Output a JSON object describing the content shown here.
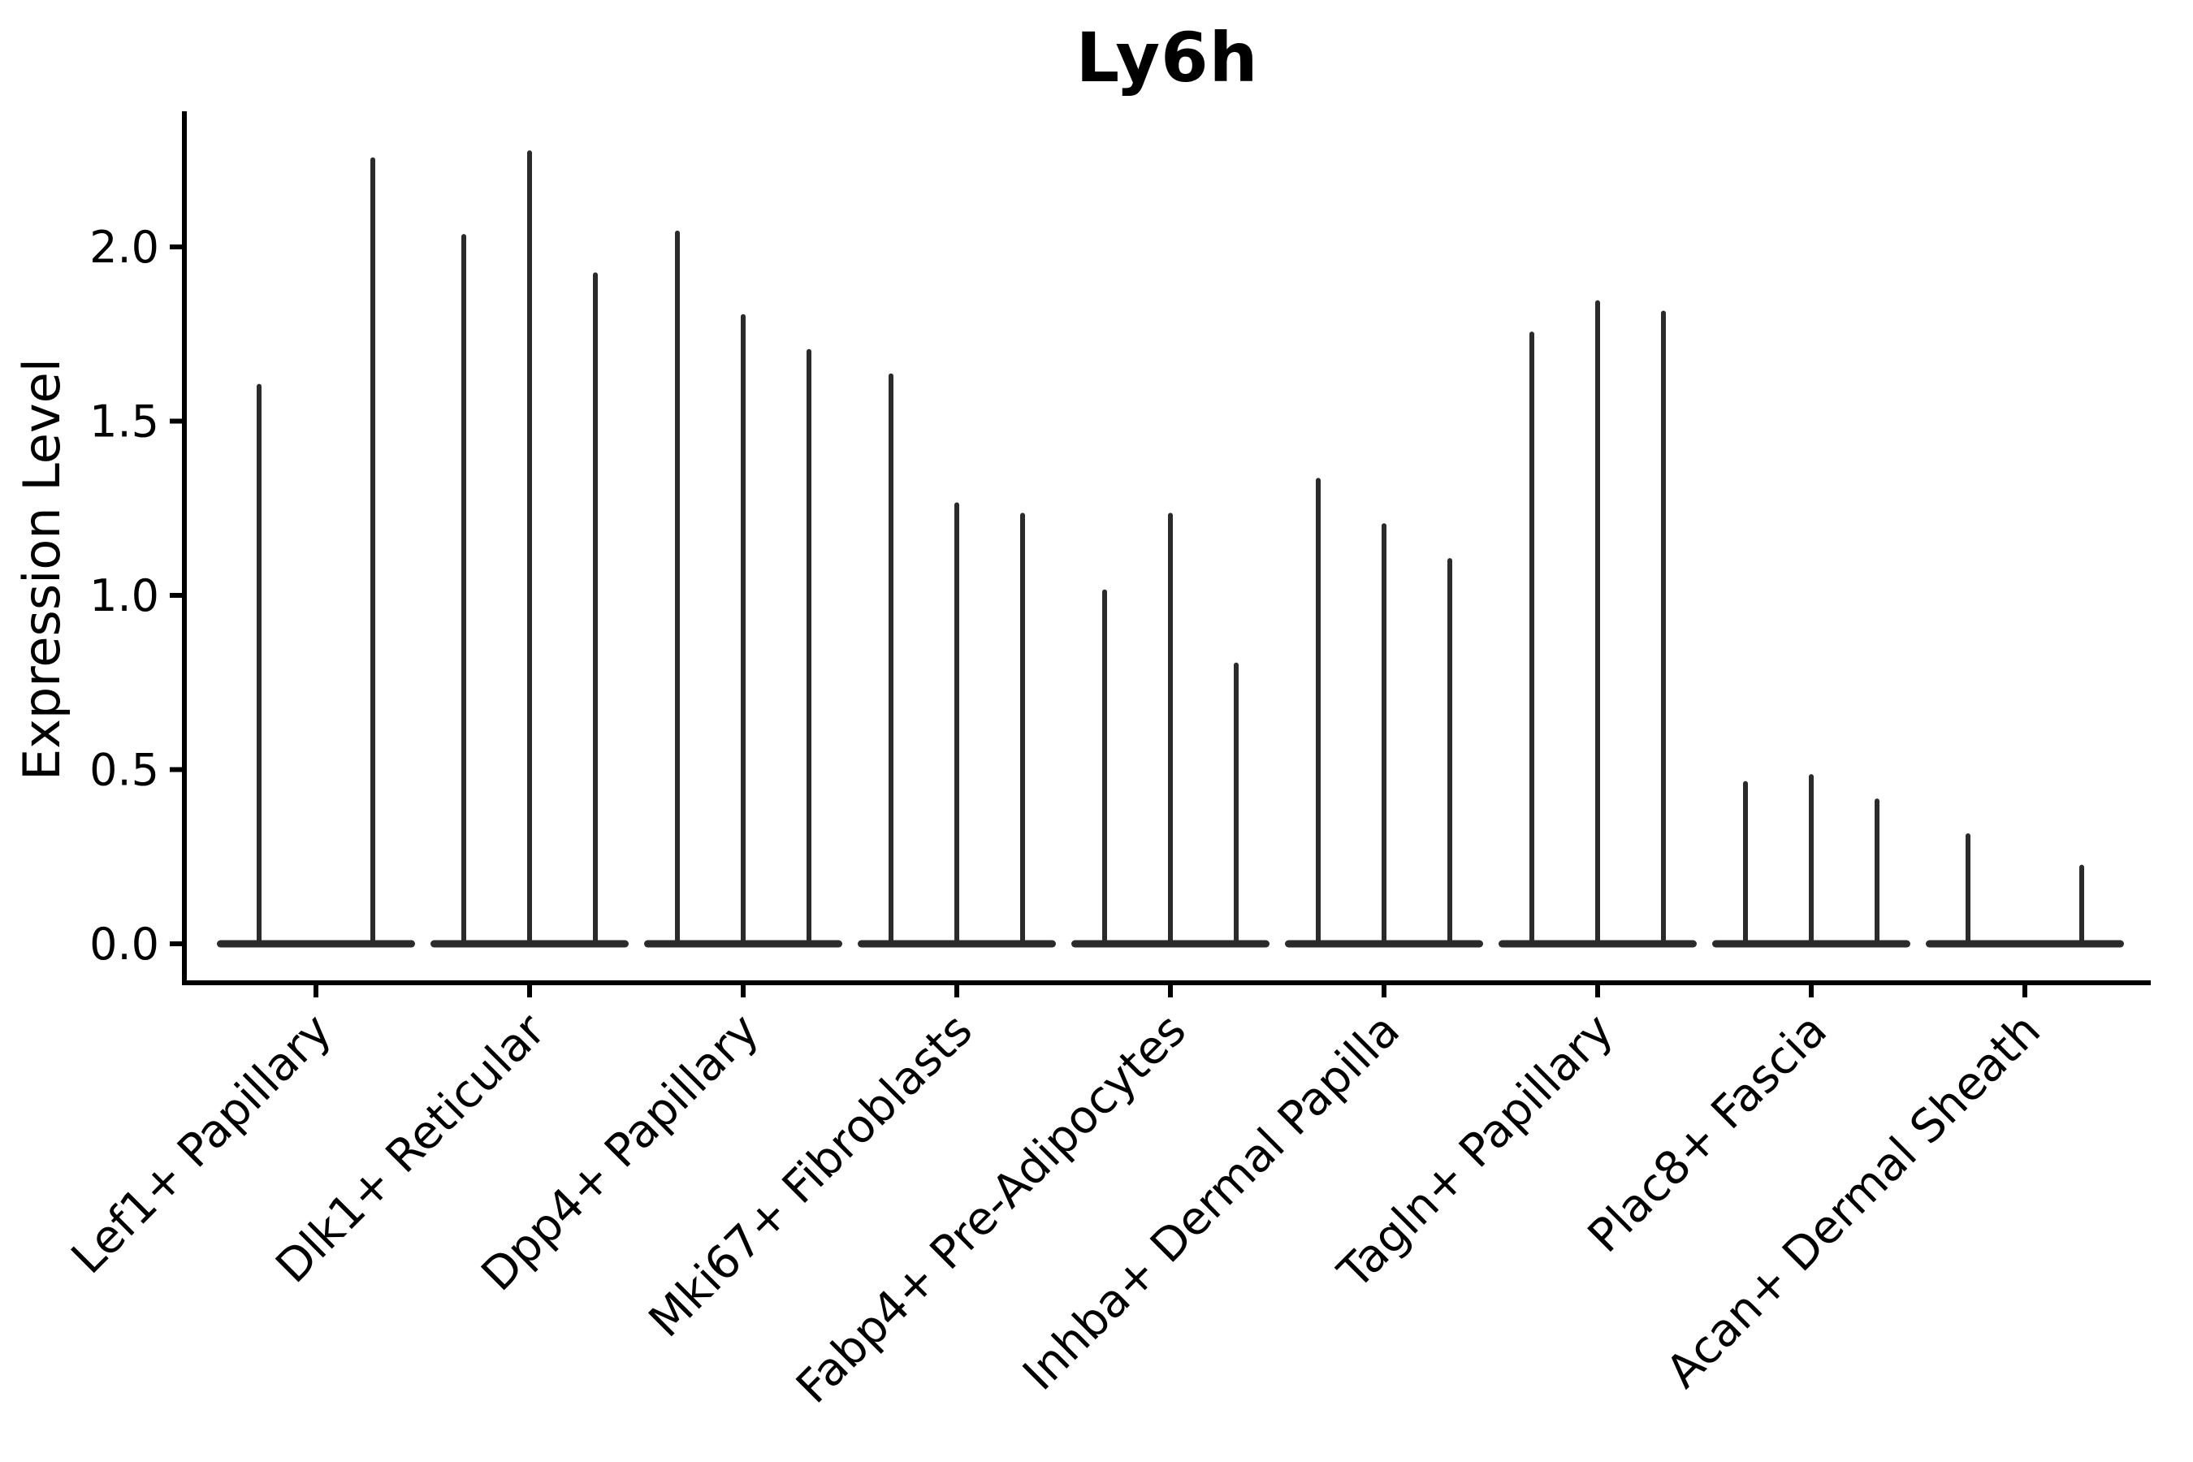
{
  "title": "Ly6h",
  "y_axis": {
    "label": "Expression Level",
    "tick_labels": [
      "0.0",
      "0.5",
      "1.0",
      "1.5",
      "2.0"
    ],
    "tick_values": [
      0.0,
      0.5,
      1.0,
      1.5,
      2.0
    ]
  },
  "chart_data": {
    "type": "violin",
    "title": "Ly6h",
    "xlabel": "",
    "ylabel": "Expression Level",
    "ylim": [
      -0.11,
      2.39
    ],
    "yticks": [
      0.0,
      0.5,
      1.0,
      1.5,
      2.0
    ],
    "grid": false,
    "legend": "none",
    "style": "needle violins: nearly all density mass at 0 (wide flat base), thin spike to max expression",
    "categories": [
      "Lef1+ Papillary",
      "Dlk1+ Reticular",
      "Dpp4+ Papillary",
      "Mki67+ Fibroblasts",
      "Fabp4+ Pre-Adipocytes",
      "Inhba+ Dermal Papilla",
      "Tagln+ Papillary",
      "Plac8+ Fascia",
      "Acan+ Dermal Sheath"
    ],
    "series": [
      {
        "category": "Lef1+ Papillary",
        "violin_peaks": [
          1.6,
          2.25
        ]
      },
      {
        "category": "Dlk1+ Reticular",
        "violin_peaks": [
          2.03,
          2.27,
          1.92
        ]
      },
      {
        "category": "Dpp4+ Papillary",
        "violin_peaks": [
          2.04,
          1.8,
          1.7
        ]
      },
      {
        "category": "Mki67+ Fibroblasts",
        "violin_peaks": [
          1.63,
          1.26,
          1.23
        ]
      },
      {
        "category": "Fabp4+ Pre-Adipocytes",
        "violin_peaks": [
          1.01,
          1.23,
          0.8
        ]
      },
      {
        "category": "Inhba+ Dermal Papilla",
        "violin_peaks": [
          1.33,
          1.2,
          1.1
        ]
      },
      {
        "category": "Tagln+ Papillary",
        "violin_peaks": [
          1.75,
          1.84,
          1.81
        ]
      },
      {
        "category": "Plac8+ Fascia",
        "violin_peaks": [
          0.46,
          0.48,
          0.41
        ]
      },
      {
        "category": "Acan+ Dermal Sheath",
        "violin_peaks": [
          0.31,
          0.22
        ]
      }
    ],
    "colors": {
      "violin": "#2b2b2b",
      "axis": "#000000",
      "text": "#000000",
      "background": "#ffffff"
    }
  }
}
